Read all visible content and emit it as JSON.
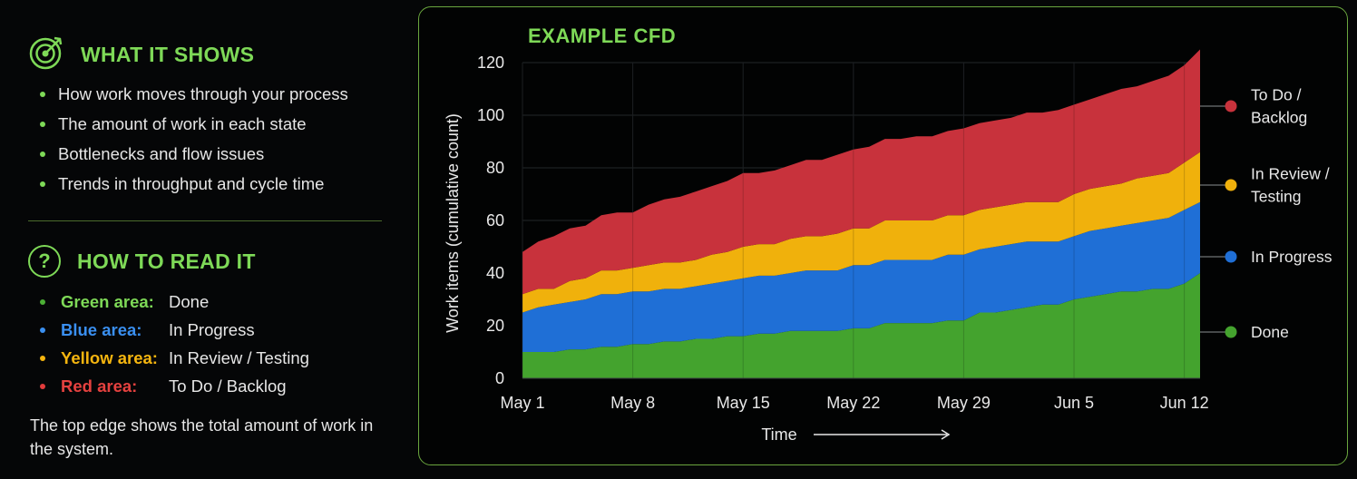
{
  "what_it_shows": {
    "title": "WHAT IT SHOWS",
    "items": [
      "How work moves through your process",
      "The amount of work in each state",
      "Bottlenecks and flow issues",
      "Trends in throughput and cycle time"
    ]
  },
  "how_to_read": {
    "title": "HOW TO READ IT",
    "icon": "?",
    "rows": [
      {
        "key": "Green area:",
        "value": "Done",
        "color": "#4caf35"
      },
      {
        "key": "Blue area:",
        "value": "In Progress",
        "color": "#2f7de0"
      },
      {
        "key": "Yellow area:",
        "value": "In Review / Testing",
        "color": "#f5b50f"
      },
      {
        "key": "Red area:",
        "value": "To Do / Backlog",
        "color": "#e23b3b"
      }
    ],
    "note": "The top edge shows the total amount of work in the system."
  },
  "icons": [
    "target-icon",
    "question-icon",
    "arrow-right-icon"
  ],
  "chart_data": {
    "type": "area",
    "title": "EXAMPLE CFD",
    "xlabel": "Time",
    "ylabel": "Work items (cumulative count)",
    "ylim": [
      0,
      120
    ],
    "yticks": [
      0,
      20,
      40,
      60,
      80,
      100,
      120
    ],
    "xticks": [
      "May 1",
      "May 8",
      "May 15",
      "May 22",
      "May 29",
      "Jun 5",
      "Jun 12"
    ],
    "grid": true,
    "legend_position": "right",
    "x": [
      "May 1",
      "May 2",
      "May 3",
      "May 4",
      "May 5",
      "May 6",
      "May 7",
      "May 8",
      "May 9",
      "May 10",
      "May 11",
      "May 12",
      "May 13",
      "May 14",
      "May 15",
      "May 16",
      "May 17",
      "May 18",
      "May 19",
      "May 20",
      "May 21",
      "May 22",
      "May 23",
      "May 24",
      "May 25",
      "May 26",
      "May 27",
      "May 28",
      "May 29",
      "May 30",
      "May 31",
      "Jun 1",
      "Jun 2",
      "Jun 3",
      "Jun 4",
      "Jun 5",
      "Jun 6",
      "Jun 7",
      "Jun 8",
      "Jun 9",
      "Jun 10",
      "Jun 11",
      "Jun 12",
      "Jun 13"
    ],
    "series": [
      {
        "name": "Done",
        "color": "#44a32e",
        "values": [
          10,
          10,
          10,
          11,
          11,
          12,
          12,
          13,
          13,
          14,
          14,
          15,
          15,
          16,
          16,
          17,
          17,
          18,
          18,
          18,
          18,
          19,
          19,
          21,
          21,
          21,
          21,
          22,
          22,
          25,
          25,
          26,
          27,
          28,
          28,
          30,
          31,
          32,
          33,
          33,
          34,
          34,
          36,
          40
        ]
      },
      {
        "name": "In Progress",
        "color": "#1f6fd6",
        "values": [
          15,
          17,
          18,
          18,
          19,
          20,
          20,
          20,
          20,
          20,
          20,
          20,
          21,
          21,
          22,
          22,
          22,
          22,
          23,
          23,
          23,
          24,
          24,
          24,
          24,
          24,
          24,
          25,
          25,
          24,
          25,
          25,
          25,
          24,
          24,
          24,
          25,
          25,
          25,
          26,
          26,
          27,
          28,
          27
        ]
      },
      {
        "name": "In Review / Testing",
        "color": "#f0b10c",
        "values": [
          7,
          7,
          6,
          8,
          8,
          9,
          9,
          9,
          10,
          10,
          10,
          10,
          11,
          11,
          12,
          12,
          12,
          13,
          13,
          13,
          14,
          14,
          14,
          15,
          15,
          15,
          15,
          15,
          15,
          15,
          15,
          15,
          15,
          15,
          15,
          16,
          16,
          16,
          16,
          17,
          17,
          17,
          18,
          19
        ]
      },
      {
        "name": "To Do / Backlog",
        "color": "#c8323c",
        "values": [
          16,
          18,
          20,
          20,
          20,
          21,
          22,
          21,
          23,
          24,
          25,
          26,
          26,
          27,
          28,
          27,
          28,
          28,
          29,
          29,
          30,
          30,
          31,
          31,
          31,
          32,
          32,
          32,
          33,
          33,
          33,
          33,
          34,
          34,
          35,
          34,
          34,
          35,
          36,
          35,
          36,
          37,
          37,
          39
        ]
      }
    ],
    "legend_labels": [
      {
        "series": "To Do / Backlog",
        "lines": [
          "To Do /",
          "Backlog"
        ]
      },
      {
        "series": "In Review / Testing",
        "lines": [
          "In Review /",
          "Testing"
        ]
      },
      {
        "series": "In Progress",
        "lines": [
          "In Progress"
        ]
      },
      {
        "series": "Done",
        "lines": [
          "Done"
        ]
      }
    ]
  }
}
